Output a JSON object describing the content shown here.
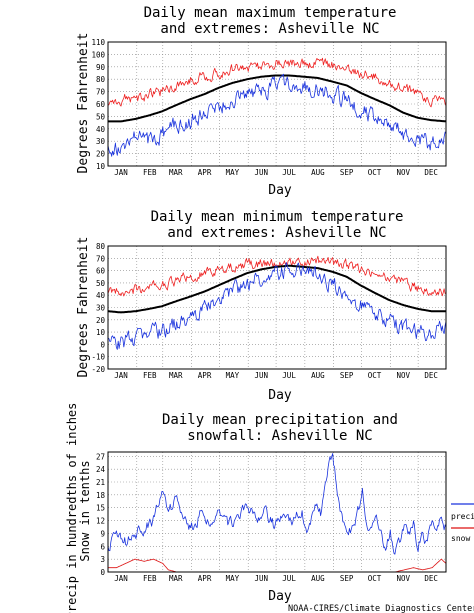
{
  "credit": "NOAA-CIRES/Climate Diagnostics Center",
  "colors": {
    "max": "#ee2222",
    "mean": "#000000",
    "min": "#1a33dd",
    "precip": "#1a33dd",
    "snow": "#dd1111",
    "grid": "#888888"
  },
  "chart_data": [
    {
      "type": "line",
      "title_lines": [
        "Daily mean maximum temperature",
        "and extremes: Asheville NC"
      ],
      "xlabel": "Day",
      "ylabel": "Degrees Fahrenheit",
      "ylim": [
        10,
        110
      ],
      "yticks": [
        10,
        20,
        30,
        40,
        50,
        60,
        70,
        80,
        90,
        100,
        110
      ],
      "grid": true,
      "x_ticks": [
        "JAN",
        "FEB",
        "MAR",
        "APR",
        "MAY",
        "JUN",
        "JUL",
        "AUG",
        "SEP",
        "OCT",
        "NOV",
        "DEC"
      ],
      "x_days": [
        1,
        32,
        60,
        91,
        121,
        152,
        182,
        213,
        244,
        274,
        305,
        335
      ],
      "series": [
        {
          "role": "max",
          "color": "#ee2222",
          "x": [
            1,
            15,
            31,
            46,
            59,
            74,
            90,
            105,
            120,
            135,
            151,
            166,
            181,
            196,
            212,
            227,
            243,
            258,
            273,
            288,
            304,
            319,
            334,
            349,
            365
          ],
          "y": [
            60,
            64,
            64,
            68,
            70,
            74,
            80,
            82,
            85,
            88,
            90,
            91,
            93,
            93,
            92,
            92,
            91,
            88,
            85,
            82,
            77,
            72,
            68,
            64,
            60
          ]
        },
        {
          "role": "mean",
          "color": "#000000",
          "x": [
            1,
            15,
            31,
            46,
            59,
            74,
            90,
            105,
            120,
            135,
            151,
            166,
            181,
            196,
            212,
            227,
            243,
            258,
            273,
            288,
            304,
            319,
            334,
            349,
            365
          ],
          "y": [
            46,
            46,
            48,
            51,
            54,
            59,
            64,
            68,
            73,
            77,
            80,
            82,
            83,
            83,
            82,
            81,
            78,
            75,
            69,
            64,
            59,
            53,
            49,
            47,
            46
          ]
        },
        {
          "role": "min",
          "color": "#1a33dd",
          "x": [
            1,
            15,
            31,
            46,
            59,
            74,
            90,
            105,
            120,
            135,
            151,
            166,
            181,
            196,
            212,
            227,
            243,
            258,
            273,
            288,
            304,
            319,
            334,
            349,
            365
          ],
          "y": [
            27,
            22,
            33,
            30,
            35,
            42,
            48,
            53,
            57,
            63,
            68,
            72,
            74,
            75,
            74,
            72,
            68,
            62,
            55,
            48,
            42,
            36,
            32,
            28,
            30
          ]
        }
      ]
    },
    {
      "type": "line",
      "title_lines": [
        "Daily mean minimum temperature",
        "and extremes: Asheville NC"
      ],
      "xlabel": "Day",
      "ylabel": "Degrees Fahrenheit",
      "ylim": [
        -20,
        80
      ],
      "yticks": [
        -20,
        -10,
        0,
        10,
        20,
        30,
        40,
        50,
        60,
        70,
        80
      ],
      "grid": true,
      "x_ticks": [
        "JAN",
        "FEB",
        "MAR",
        "APR",
        "MAY",
        "JUN",
        "JUL",
        "AUG",
        "SEP",
        "OCT",
        "NOV",
        "DEC"
      ],
      "x_days": [
        1,
        32,
        60,
        91,
        121,
        152,
        182,
        213,
        244,
        274,
        305,
        335
      ],
      "series": [
        {
          "role": "max",
          "color": "#ee2222",
          "x": [
            1,
            15,
            31,
            46,
            59,
            74,
            90,
            105,
            120,
            135,
            151,
            166,
            181,
            196,
            212,
            227,
            243,
            258,
            273,
            288,
            304,
            319,
            334,
            349,
            365
          ],
          "y": [
            42,
            43,
            44,
            46,
            48,
            52,
            55,
            57,
            60,
            63,
            65,
            66,
            67,
            68,
            68,
            67,
            66,
            64,
            61,
            58,
            54,
            50,
            46,
            44,
            43
          ]
        },
        {
          "role": "mean",
          "color": "#000000",
          "x": [
            1,
            15,
            31,
            46,
            59,
            74,
            90,
            105,
            120,
            135,
            151,
            166,
            181,
            196,
            212,
            227,
            243,
            258,
            273,
            288,
            304,
            319,
            334,
            349,
            365
          ],
          "y": [
            27,
            26,
            27,
            29,
            31,
            35,
            39,
            43,
            48,
            53,
            58,
            61,
            63,
            64,
            63,
            62,
            59,
            55,
            48,
            42,
            36,
            32,
            29,
            27,
            27
          ]
        },
        {
          "role": "min",
          "color": "#1a33dd",
          "x": [
            1,
            15,
            31,
            46,
            59,
            74,
            90,
            105,
            120,
            135,
            151,
            166,
            181,
            196,
            212,
            227,
            243,
            258,
            273,
            288,
            304,
            319,
            334,
            349,
            365
          ],
          "y": [
            5,
            0,
            6,
            8,
            11,
            17,
            23,
            28,
            35,
            42,
            50,
            55,
            58,
            59,
            58,
            55,
            49,
            40,
            32,
            24,
            19,
            14,
            8,
            10,
            15
          ]
        }
      ]
    },
    {
      "type": "line",
      "title_lines": [
        "Daily mean precipitation and",
        "snowfall: Asheville NC"
      ],
      "xlabel": "Day",
      "ylabel_lines": [
        "Precip in hundredths of inches",
        "Snow in tenths"
      ],
      "ylim": [
        0,
        28
      ],
      "yticks": [
        0,
        3,
        6,
        9,
        12,
        15,
        18,
        21,
        24,
        27
      ],
      "grid": true,
      "x_ticks": [
        "JAN",
        "FEB",
        "MAR",
        "APR",
        "MAY",
        "JUN",
        "JUL",
        "AUG",
        "SEP",
        "OCT",
        "NOV",
        "DEC"
      ],
      "x_days": [
        1,
        32,
        60,
        91,
        121,
        152,
        182,
        213,
        244,
        274,
        305,
        335
      ],
      "legend": [
        "precip",
        "snow"
      ],
      "legend_position": "right",
      "series": [
        {
          "name": "precip",
          "color": "#1a33dd",
          "x": [
            1,
            10,
            20,
            30,
            40,
            50,
            58,
            66,
            74,
            82,
            90,
            100,
            110,
            120,
            130,
            140,
            150,
            160,
            170,
            180,
            190,
            200,
            210,
            215,
            220,
            225,
            230,
            235,
            240,
            243,
            246,
            250,
            255,
            260,
            265,
            270,
            275,
            280,
            285,
            290,
            295,
            300,
            305,
            310,
            315,
            320,
            325,
            330,
            335,
            340,
            345,
            350,
            355,
            360,
            365
          ],
          "y": [
            6,
            8,
            7,
            9,
            10,
            12,
            19,
            14,
            17,
            12,
            10,
            13,
            11,
            14,
            11,
            12,
            16,
            12,
            14,
            11,
            13,
            12,
            14,
            10,
            13,
            15,
            14,
            20,
            26,
            27,
            22,
            15,
            12,
            9,
            11,
            14,
            19,
            11,
            9,
            12,
            10,
            5,
            9,
            4,
            7,
            10,
            8,
            11,
            6,
            9,
            7,
            12,
            9,
            12,
            10
          ]
        },
        {
          "name": "snow",
          "color": "#dd1111",
          "x": [
            1,
            10,
            20,
            30,
            40,
            50,
            60,
            66,
            75,
            90,
            200,
            310,
            320,
            330,
            340,
            350,
            355,
            360,
            365
          ],
          "y": [
            1,
            1,
            2,
            3,
            2.5,
            3,
            2,
            0.5,
            0,
            0,
            0,
            0,
            0.5,
            1,
            0.5,
            1,
            2,
            3,
            2
          ]
        }
      ]
    }
  ]
}
